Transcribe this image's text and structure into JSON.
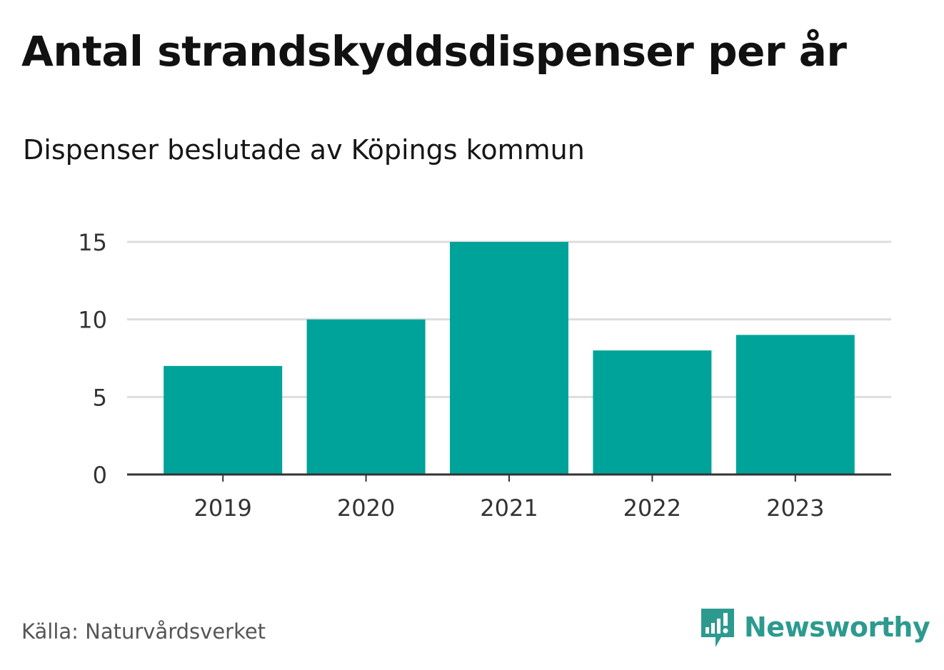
{
  "header": {
    "title": "Antal strandskyddsdispenser per år",
    "subtitle": "Dispenser beslutade av Köpings kommun"
  },
  "footer": {
    "source": "Källa: Naturvårdsverket",
    "brand": "Newsworthy",
    "brand_icon": "chart-speech-bubble-icon"
  },
  "colors": {
    "bar": "#00a399",
    "grid": "#dddddd",
    "axis": "#333333",
    "brand": "#2d9a8f"
  },
  "chart_data": {
    "type": "bar",
    "title": "Antal strandskyddsdispenser per år",
    "subtitle": "Dispenser beslutade av Köpings kommun",
    "categories": [
      "2019",
      "2020",
      "2021",
      "2022",
      "2023"
    ],
    "values": [
      7,
      10,
      15,
      8,
      9
    ],
    "xlabel": "",
    "ylabel": "",
    "ylim": [
      0,
      15
    ],
    "yticks": [
      0,
      5,
      10,
      15
    ],
    "grid": true,
    "legend": "none"
  }
}
